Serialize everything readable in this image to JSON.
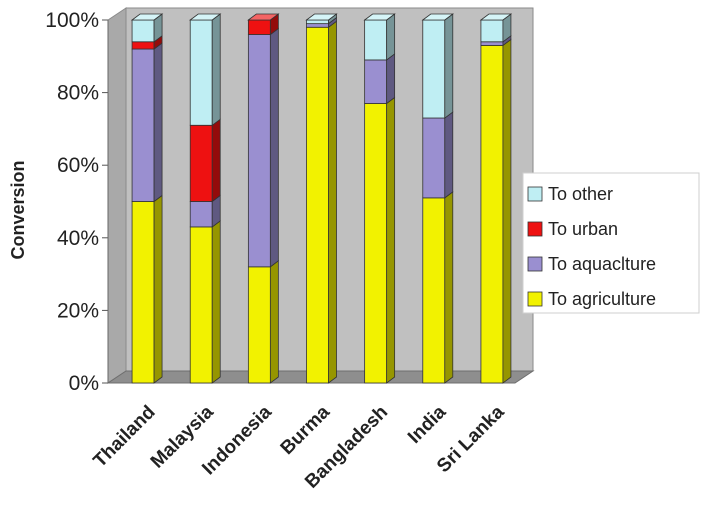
{
  "chart_data": {
    "type": "bar",
    "stacked": true,
    "three_d": true,
    "ylabel": "Conversion",
    "ylim": [
      0,
      100
    ],
    "y_ticks": [
      "0%",
      "20%",
      "40%",
      "60%",
      "80%",
      "100%"
    ],
    "categories": [
      "Thailand",
      "Malaysia",
      "Indonesia",
      "Burma",
      "Bangladesh",
      "India",
      "Sri Lanka"
    ],
    "series": [
      {
        "name": "To agriculture",
        "color": "#f2f200",
        "values": [
          50,
          43,
          32,
          98,
          77,
          51,
          93
        ]
      },
      {
        "name": "To aquaclture",
        "color": "#9a8fd0",
        "values": [
          42,
          7,
          64,
          1,
          12,
          22,
          1
        ]
      },
      {
        "name": "To urban",
        "color": "#ee1111",
        "values": [
          2,
          21,
          4,
          0,
          0,
          0,
          0
        ]
      },
      {
        "name": "To other",
        "color": "#bfeef3",
        "values": [
          6,
          29,
          0,
          1,
          11,
          27,
          6
        ]
      }
    ],
    "legend_position": "right",
    "grid": false,
    "plot_background": "#c0c0c0"
  }
}
